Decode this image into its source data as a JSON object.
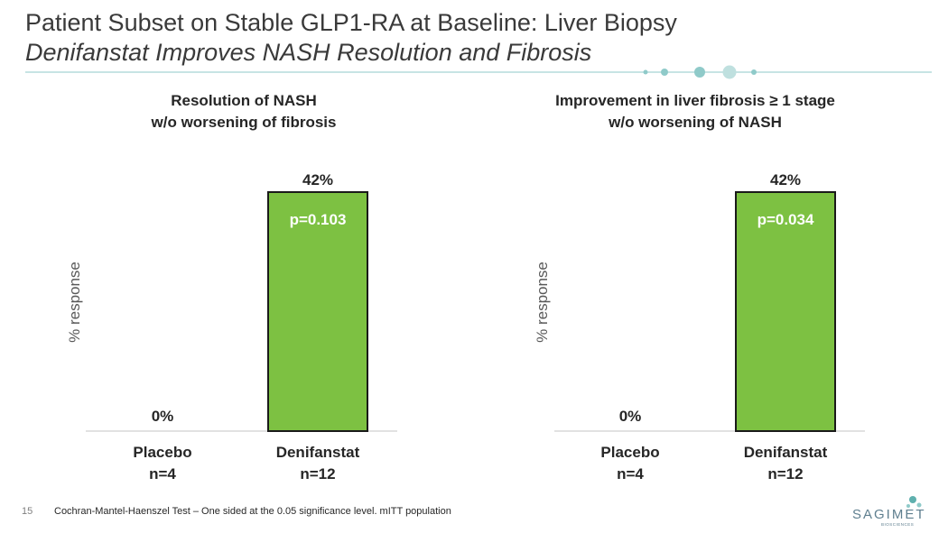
{
  "title": "Patient Subset on Stable GLP1-RA at Baseline: Liver Biopsy",
  "subtitle": "Denifanstat Improves NASH Resolution and Fibrosis",
  "colors": {
    "bar": "#7dc142",
    "bar_border": "#1a1a1a",
    "accent": "#8fcac9",
    "axis": "#d9d9d9"
  },
  "chart_data": [
    {
      "type": "bar",
      "title_line1": "Resolution of NASH",
      "title_line2": "w/o worsening of fibrosis",
      "ylabel": "% response",
      "ylim": [
        0,
        50
      ],
      "categories": [
        "Placebo",
        "Denifanstat"
      ],
      "category_n": [
        "n=4",
        "n=12"
      ],
      "values": [
        0,
        42
      ],
      "value_labels": [
        "0%",
        "42%"
      ],
      "p_value": "p=0.103"
    },
    {
      "type": "bar",
      "title_line1": "Improvement in liver fibrosis ≥ 1 stage",
      "title_line2": "w/o worsening of NASH",
      "ylabel": "% response",
      "ylim": [
        0,
        50
      ],
      "categories": [
        "Placebo",
        "Denifanstat"
      ],
      "category_n": [
        "n=4",
        "n=12"
      ],
      "values": [
        0,
        42
      ],
      "value_labels": [
        "0%",
        "42%"
      ],
      "p_value": "p=0.034"
    }
  ],
  "footer": {
    "page_number": "15",
    "note": "Cochran-Mantel-Haenszel Test – One sided at the 0.05 significance level. mITT population"
  },
  "logo": {
    "name": "SAGIMET",
    "tagline": "BIOSCIENCES"
  }
}
